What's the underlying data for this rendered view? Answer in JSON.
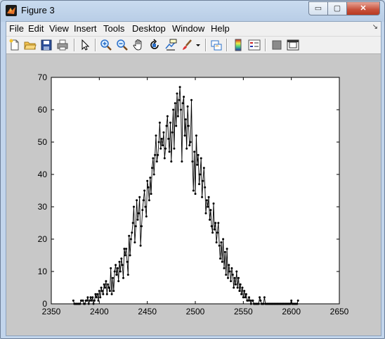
{
  "window": {
    "title": "Figure 3",
    "minimize_glyph": "▭",
    "maximize_glyph": "▢",
    "close_glyph": "✕"
  },
  "menu": {
    "items": [
      "File",
      "Edit",
      "View",
      "Insert",
      "Tools",
      "Desktop",
      "Window",
      "Help"
    ],
    "overflow_glyph": "↘"
  },
  "toolbar": {
    "buttons": [
      "new-figure-icon",
      "open-file-icon",
      "save-icon",
      "print-icon",
      "edit-plot-arrow-icon",
      "zoom-in-icon",
      "zoom-out-icon",
      "pan-hand-icon",
      "rotate-3d-icon",
      "data-cursor-icon",
      "brush-icon",
      "brush-dropdown-icon",
      "link-plot-icon",
      "colorbar-icon",
      "legend-icon",
      "hide-plot-tools-icon",
      "show-plot-tools-icon"
    ]
  },
  "colors": {
    "figure_bg": "#c8c8c8",
    "axes_bg": "#ffffff",
    "line": "#000000",
    "titlebar": "#c9dbef",
    "close_button": "#c7503a"
  },
  "chart_data": {
    "type": "line",
    "marker": "dot",
    "title": "",
    "xlabel": "",
    "ylabel": "",
    "xlim": [
      2350,
      2650
    ],
    "ylim": [
      0,
      70
    ],
    "xticks": [
      2350,
      2400,
      2450,
      2500,
      2550,
      2600,
      2650
    ],
    "yticks": [
      0,
      10,
      20,
      30,
      40,
      50,
      60,
      70
    ],
    "grid": false,
    "x_start": 2373,
    "x_step": 1,
    "y": [
      1,
      0,
      0,
      0,
      0,
      0,
      0,
      0,
      1,
      1,
      1,
      0,
      0,
      1,
      1,
      2,
      0,
      1,
      2,
      1,
      2,
      0,
      1,
      3,
      2,
      3,
      1,
      4,
      2,
      5,
      4,
      3,
      6,
      5,
      7,
      3,
      6,
      5,
      4,
      11,
      3,
      8,
      4,
      10,
      12,
      9,
      11,
      7,
      13,
      10,
      14,
      12,
      8,
      17,
      15,
      17,
      13,
      9,
      21,
      15,
      20,
      22,
      25,
      30,
      19,
      24,
      32,
      26,
      28,
      33,
      18,
      24,
      29,
      32,
      35,
      30,
      27,
      38,
      36,
      32,
      39,
      34,
      42,
      45,
      40,
      46,
      52,
      44,
      46,
      50,
      56,
      48,
      51,
      49,
      53,
      45,
      48,
      55,
      58,
      51,
      47,
      56,
      44,
      53,
      60,
      48,
      62,
      55,
      65,
      58,
      63,
      67,
      60,
      44,
      62,
      64,
      52,
      57,
      48,
      61,
      55,
      49,
      50,
      63,
      44,
      35,
      47,
      34,
      52,
      43,
      46,
      37,
      40,
      45,
      33,
      38,
      42,
      36,
      28,
      32,
      30,
      33,
      26,
      29,
      24,
      22,
      31,
      23,
      25,
      19,
      22,
      25,
      18,
      14,
      19,
      13,
      20,
      11,
      16,
      9,
      17,
      8,
      12,
      10,
      7,
      11,
      9,
      5,
      8,
      6,
      10,
      5,
      8,
      4,
      6,
      3,
      5,
      2,
      4,
      2,
      3,
      1,
      1,
      2,
      1,
      0,
      1,
      1,
      0,
      0,
      0,
      0,
      0,
      0,
      2,
      1,
      0,
      0,
      0,
      2,
      0,
      0,
      0,
      0,
      0,
      0,
      0,
      0,
      0,
      0,
      0,
      0,
      0,
      0,
      0,
      0,
      0,
      0,
      0,
      0,
      0,
      0,
      0,
      0,
      0,
      0,
      0,
      1,
      0,
      0,
      0,
      0,
      0,
      0,
      1
    ]
  }
}
